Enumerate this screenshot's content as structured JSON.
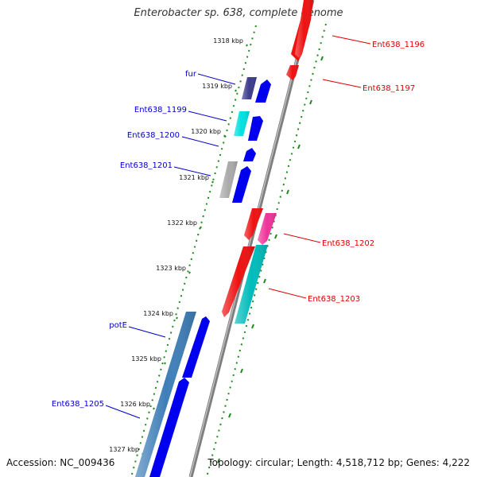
{
  "title": "Enterobacter sp. 638, complete genome",
  "footer": {
    "accession": "Accession: NC_009436",
    "summary": "Topology: circular; Length: 4,518,712 bp; Genes: 4,222"
  },
  "colors": {
    "backbone": "#8a8a8a",
    "ruler_dots": "#1e8a1e",
    "left_label": "#0000cc",
    "right_label": "#dd0000"
  },
  "ruler_ticks": [
    "1318 kbp",
    "1319 kbp",
    "1320 kbp",
    "1321 kbp",
    "1322 kbp",
    "1323 kbp",
    "1324 kbp",
    "1325 kbp",
    "1326 kbp",
    "1327 kbp"
  ],
  "labels_left": [
    {
      "text": "fur"
    },
    {
      "text": "Ent638_1199"
    },
    {
      "text": "Ent638_1200"
    },
    {
      "text": "Ent638_1201"
    },
    {
      "text": "potE"
    },
    {
      "text": "Ent638_1205"
    }
  ],
  "labels_right": [
    {
      "text": "Ent638_1196"
    },
    {
      "text": "Ent638_1197"
    },
    {
      "text": "Ent638_1202"
    },
    {
      "text": "Ent638_1203"
    }
  ]
}
